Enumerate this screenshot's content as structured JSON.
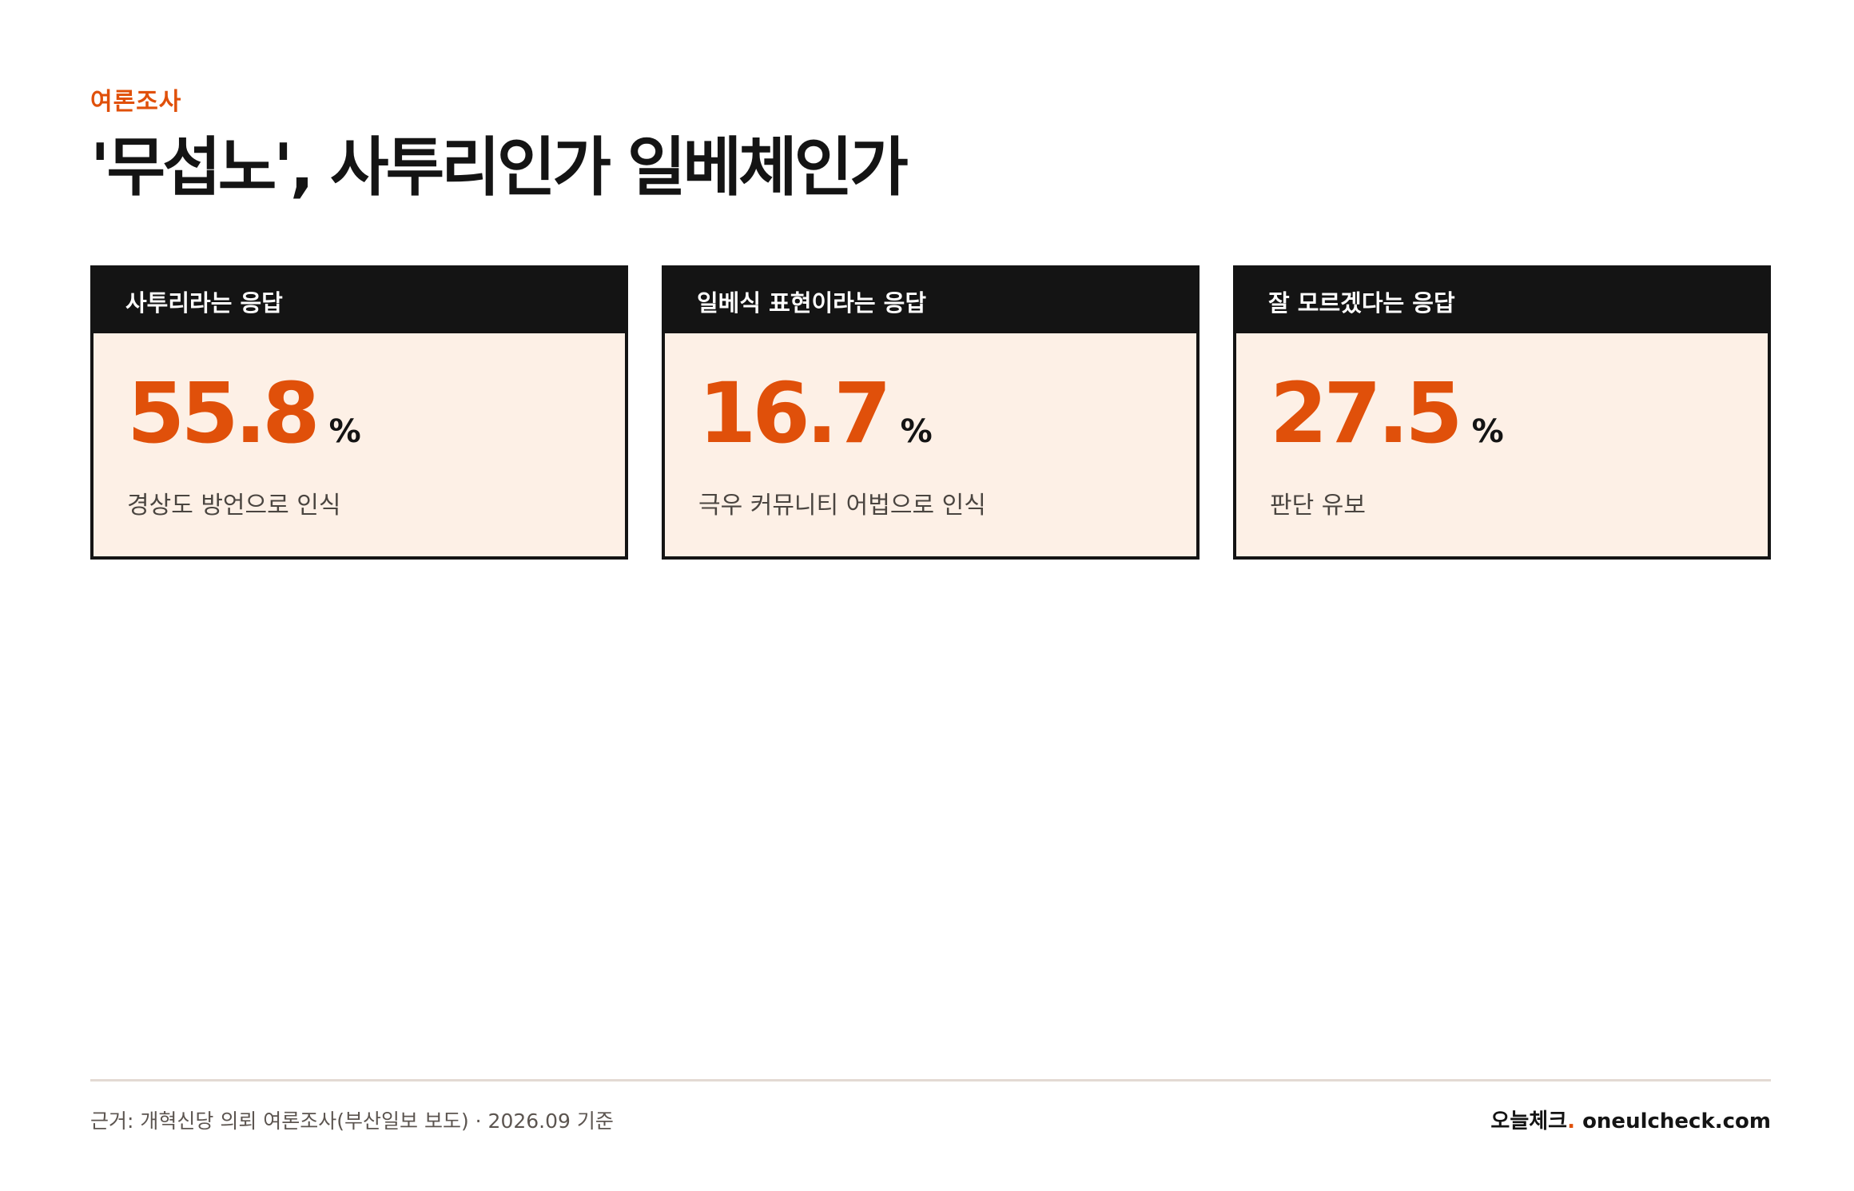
{
  "header": {
    "kicker": "여론조사",
    "title": "'무섭노', 사투리인가 일베체인가"
  },
  "cards": [
    {
      "label": "사투리라는 응답",
      "value": "55.8",
      "unit": "%",
      "description": "경상도 방언으로 인식"
    },
    {
      "label": "일베식 표현이라는 응답",
      "value": "16.7",
      "unit": "%",
      "description": "극우 커뮤니티 어법으로 인식"
    },
    {
      "label": "잘 모르겠다는 응답",
      "value": "27.5",
      "unit": "%",
      "description": "판단 유보"
    }
  ],
  "footer": {
    "source": "근거: 개혁신당 의뢰 여론조사(부산일보 보도) · 2026.09 기준",
    "brand_name": "오늘체크",
    "brand_dot": ".",
    "brand_url": "oneulcheck.com"
  },
  "colors": {
    "accent": "#e0500a",
    "dark": "#141414",
    "card_bg": "#fdf0e6"
  }
}
